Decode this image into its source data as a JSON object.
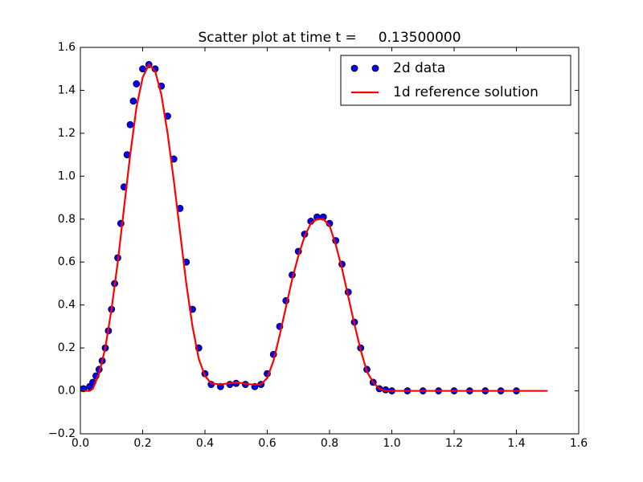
{
  "chart_data": {
    "type": "scatter",
    "title": "Scatter plot at time t =     0.13500000",
    "xlim": [
      0,
      1.6
    ],
    "ylim": [
      -0.2,
      1.6
    ],
    "xticks": [
      {
        "value": 0,
        "label": "0.0"
      },
      0.2,
      0.4,
      0.6,
      0.8,
      {
        "value": 1,
        "label": "1.0"
      },
      1.2,
      1.4,
      1.6
    ],
    "yticks": [
      {
        "value": -0.2,
        "label": "−0.2"
      },
      {
        "value": 0,
        "label": "0.0"
      },
      0.2,
      0.4,
      0.6,
      0.8,
      {
        "value": 1,
        "label": "1.0"
      },
      1.2,
      1.4,
      1.6
    ],
    "legend": "upper right",
    "series": [
      {
        "name": "2d data",
        "type": "scatter",
        "color": "#0000ff",
        "x": [
          0.01,
          0.03,
          0.04,
          0.05,
          0.06,
          0.07,
          0.08,
          0.09,
          0.1,
          0.11,
          0.12,
          0.13,
          0.14,
          0.15,
          0.16,
          0.17,
          0.18,
          0.2,
          0.22,
          0.24,
          0.26,
          0.28,
          0.3,
          0.32,
          0.34,
          0.36,
          0.38,
          0.4,
          0.42,
          0.45,
          0.48,
          0.5,
          0.53,
          0.56,
          0.58,
          0.6,
          0.62,
          0.64,
          0.66,
          0.68,
          0.7,
          0.72,
          0.74,
          0.76,
          0.78,
          0.8,
          0.82,
          0.84,
          0.86,
          0.88,
          0.9,
          0.92,
          0.94,
          0.96,
          0.98,
          1.0,
          1.05,
          1.1,
          1.15,
          1.2,
          1.25,
          1.3,
          1.35,
          1.4
        ],
        "values": [
          0.01,
          0.02,
          0.04,
          0.07,
          0.1,
          0.14,
          0.2,
          0.28,
          0.38,
          0.5,
          0.62,
          0.78,
          0.95,
          1.1,
          1.24,
          1.35,
          1.43,
          1.5,
          1.52,
          1.5,
          1.42,
          1.28,
          1.08,
          0.85,
          0.6,
          0.38,
          0.2,
          0.08,
          0.03,
          0.02,
          0.03,
          0.035,
          0.03,
          0.02,
          0.03,
          0.08,
          0.17,
          0.3,
          0.42,
          0.54,
          0.65,
          0.73,
          0.79,
          0.81,
          0.81,
          0.78,
          0.7,
          0.59,
          0.46,
          0.32,
          0.2,
          0.1,
          0.04,
          0.01,
          0.005,
          0,
          0,
          0,
          0,
          0,
          0,
          0,
          0,
          0
        ]
      },
      {
        "name": "1d reference solution",
        "type": "line",
        "color": "#ff0000",
        "x": [
          0,
          0.03,
          0.04,
          0.06,
          0.08,
          0.1,
          0.12,
          0.14,
          0.16,
          0.18,
          0.2,
          0.22,
          0.24,
          0.26,
          0.28,
          0.3,
          0.32,
          0.34,
          0.36,
          0.38,
          0.4,
          0.42,
          0.45,
          0.5,
          0.55,
          0.58,
          0.6,
          0.62,
          0.64,
          0.66,
          0.68,
          0.7,
          0.72,
          0.74,
          0.76,
          0.78,
          0.8,
          0.82,
          0.84,
          0.86,
          0.88,
          0.9,
          0.92,
          0.94,
          0.96,
          0.98,
          1.5
        ],
        "values": [
          0,
          0,
          0.01,
          0.08,
          0.2,
          0.38,
          0.6,
          0.85,
          1.1,
          1.32,
          1.46,
          1.52,
          1.49,
          1.38,
          1.2,
          0.98,
          0.74,
          0.5,
          0.3,
          0.15,
          0.07,
          0.035,
          0.03,
          0.04,
          0.03,
          0.03,
          0.06,
          0.14,
          0.26,
          0.39,
          0.52,
          0.63,
          0.72,
          0.78,
          0.8,
          0.8,
          0.77,
          0.68,
          0.57,
          0.44,
          0.31,
          0.19,
          0.09,
          0.04,
          0.01,
          0,
          0
        ]
      }
    ]
  }
}
